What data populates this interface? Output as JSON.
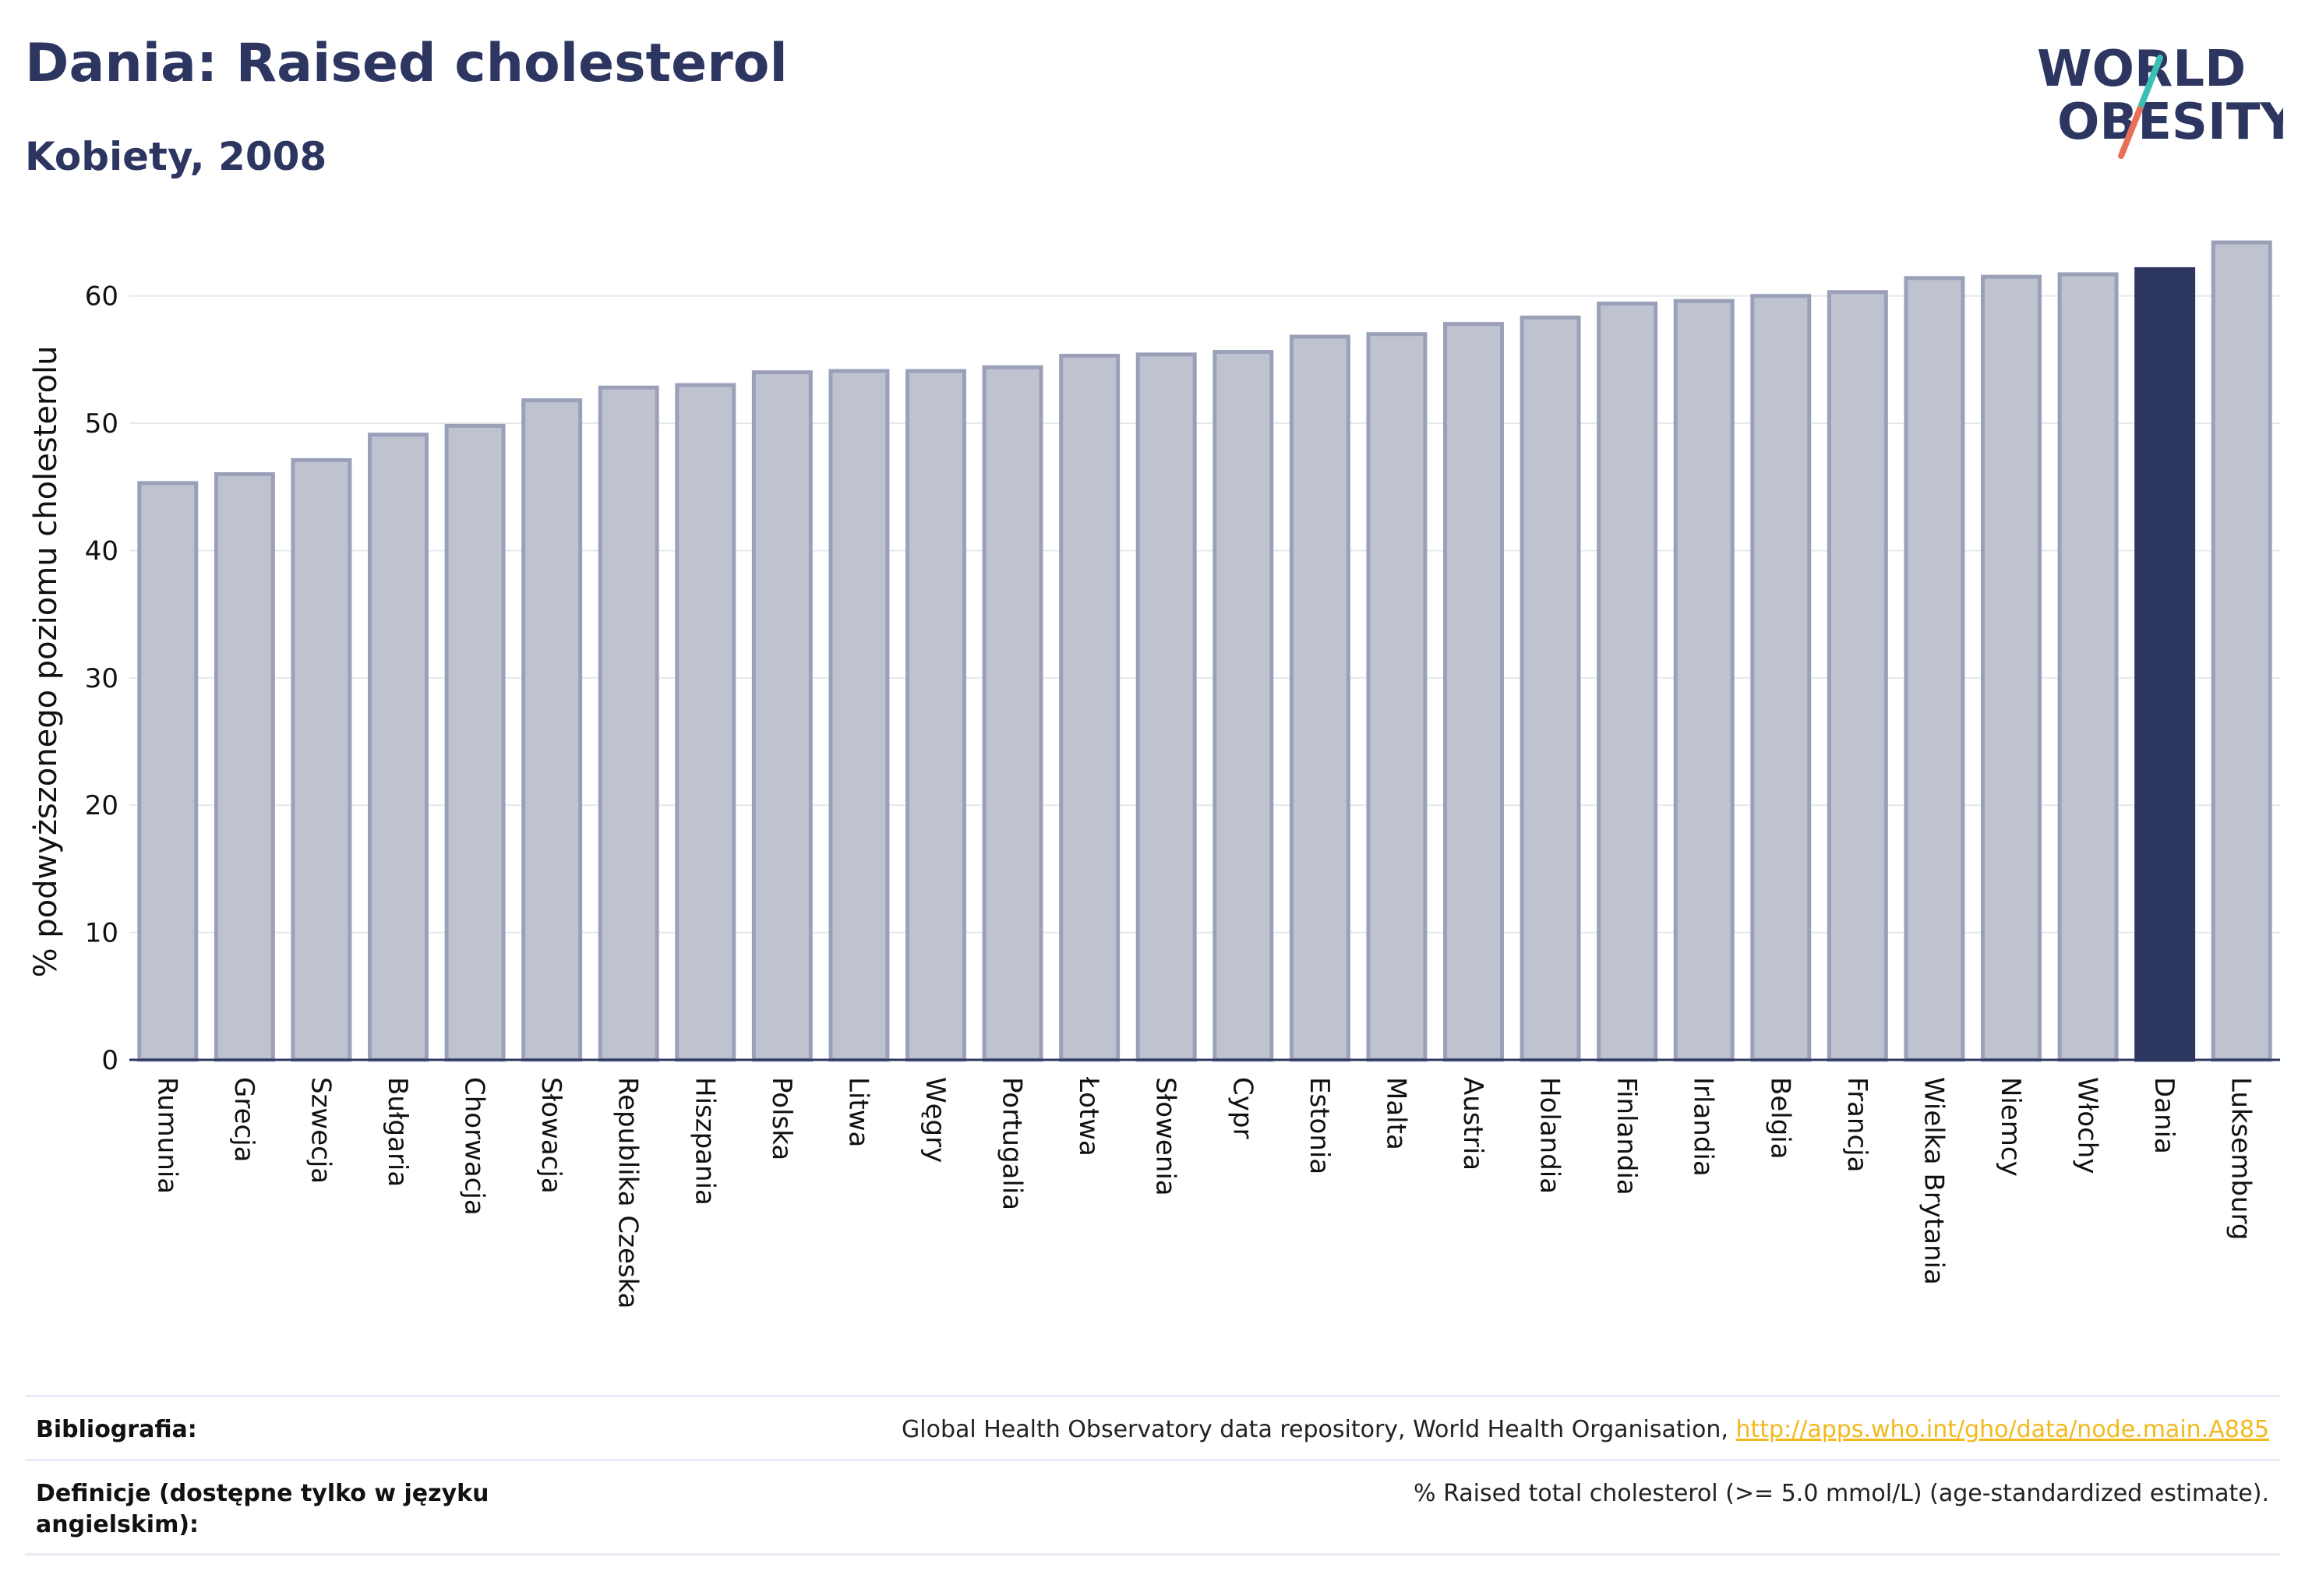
{
  "header": {
    "title": "Dania: Raised cholesterol",
    "subtitle": "Kobiety, 2008"
  },
  "logo": {
    "line1": "WORLD",
    "line2": "OBESITY"
  },
  "colors": {
    "bar": "#bfc3d0",
    "bar_border": "#9aa0b8",
    "highlight": "#2d3561",
    "grid": "#e6e8ef",
    "logo_teal": "#3bbfb5",
    "logo_red": "#e8705a"
  },
  "chart_data": {
    "type": "bar",
    "ylabel": "% podwyższonego poziomu cholesterolu",
    "ylim": [
      0,
      65
    ],
    "yticks": [
      0,
      10,
      20,
      30,
      40,
      50,
      60
    ],
    "grid": true,
    "highlight": "Dania",
    "categories": [
      "Rumunia",
      "Grecja",
      "Szwecja",
      "Bułgaria",
      "Chorwacja",
      "Słowacja",
      "Republika Czeska",
      "Hiszpania",
      "Polska",
      "Litwa",
      "Węgry",
      "Portugalia",
      "Łotwa",
      "Słowenia",
      "Cypr",
      "Estonia",
      "Malta",
      "Austria",
      "Holandia",
      "Finlandia",
      "Irlandia",
      "Belgia",
      "Francja",
      "Wielka Brytania",
      "Niemcy",
      "Włochy",
      "Dania",
      "Luksemburg"
    ],
    "values": [
      45.3,
      46.0,
      47.1,
      49.1,
      49.8,
      51.8,
      52.8,
      53.0,
      54.0,
      54.1,
      54.1,
      54.4,
      55.3,
      55.4,
      55.6,
      56.8,
      57.0,
      57.8,
      58.3,
      59.4,
      59.6,
      60.0,
      60.3,
      61.4,
      61.5,
      61.7,
      62.1,
      64.2
    ]
  },
  "footer": {
    "bibliography_label": "Bibliografia:",
    "bibliography_text": "Global Health Observatory data repository, World Health Organisation, ",
    "bibliography_link": "http://apps.who.int/gho/data/node.main.A885",
    "definitions_label": "Definicje (dostępne tylko w języku angielskim):",
    "definitions_text": "% Raised total cholesterol (>= 5.0 mmol/L) (age-standardized estimate)."
  }
}
